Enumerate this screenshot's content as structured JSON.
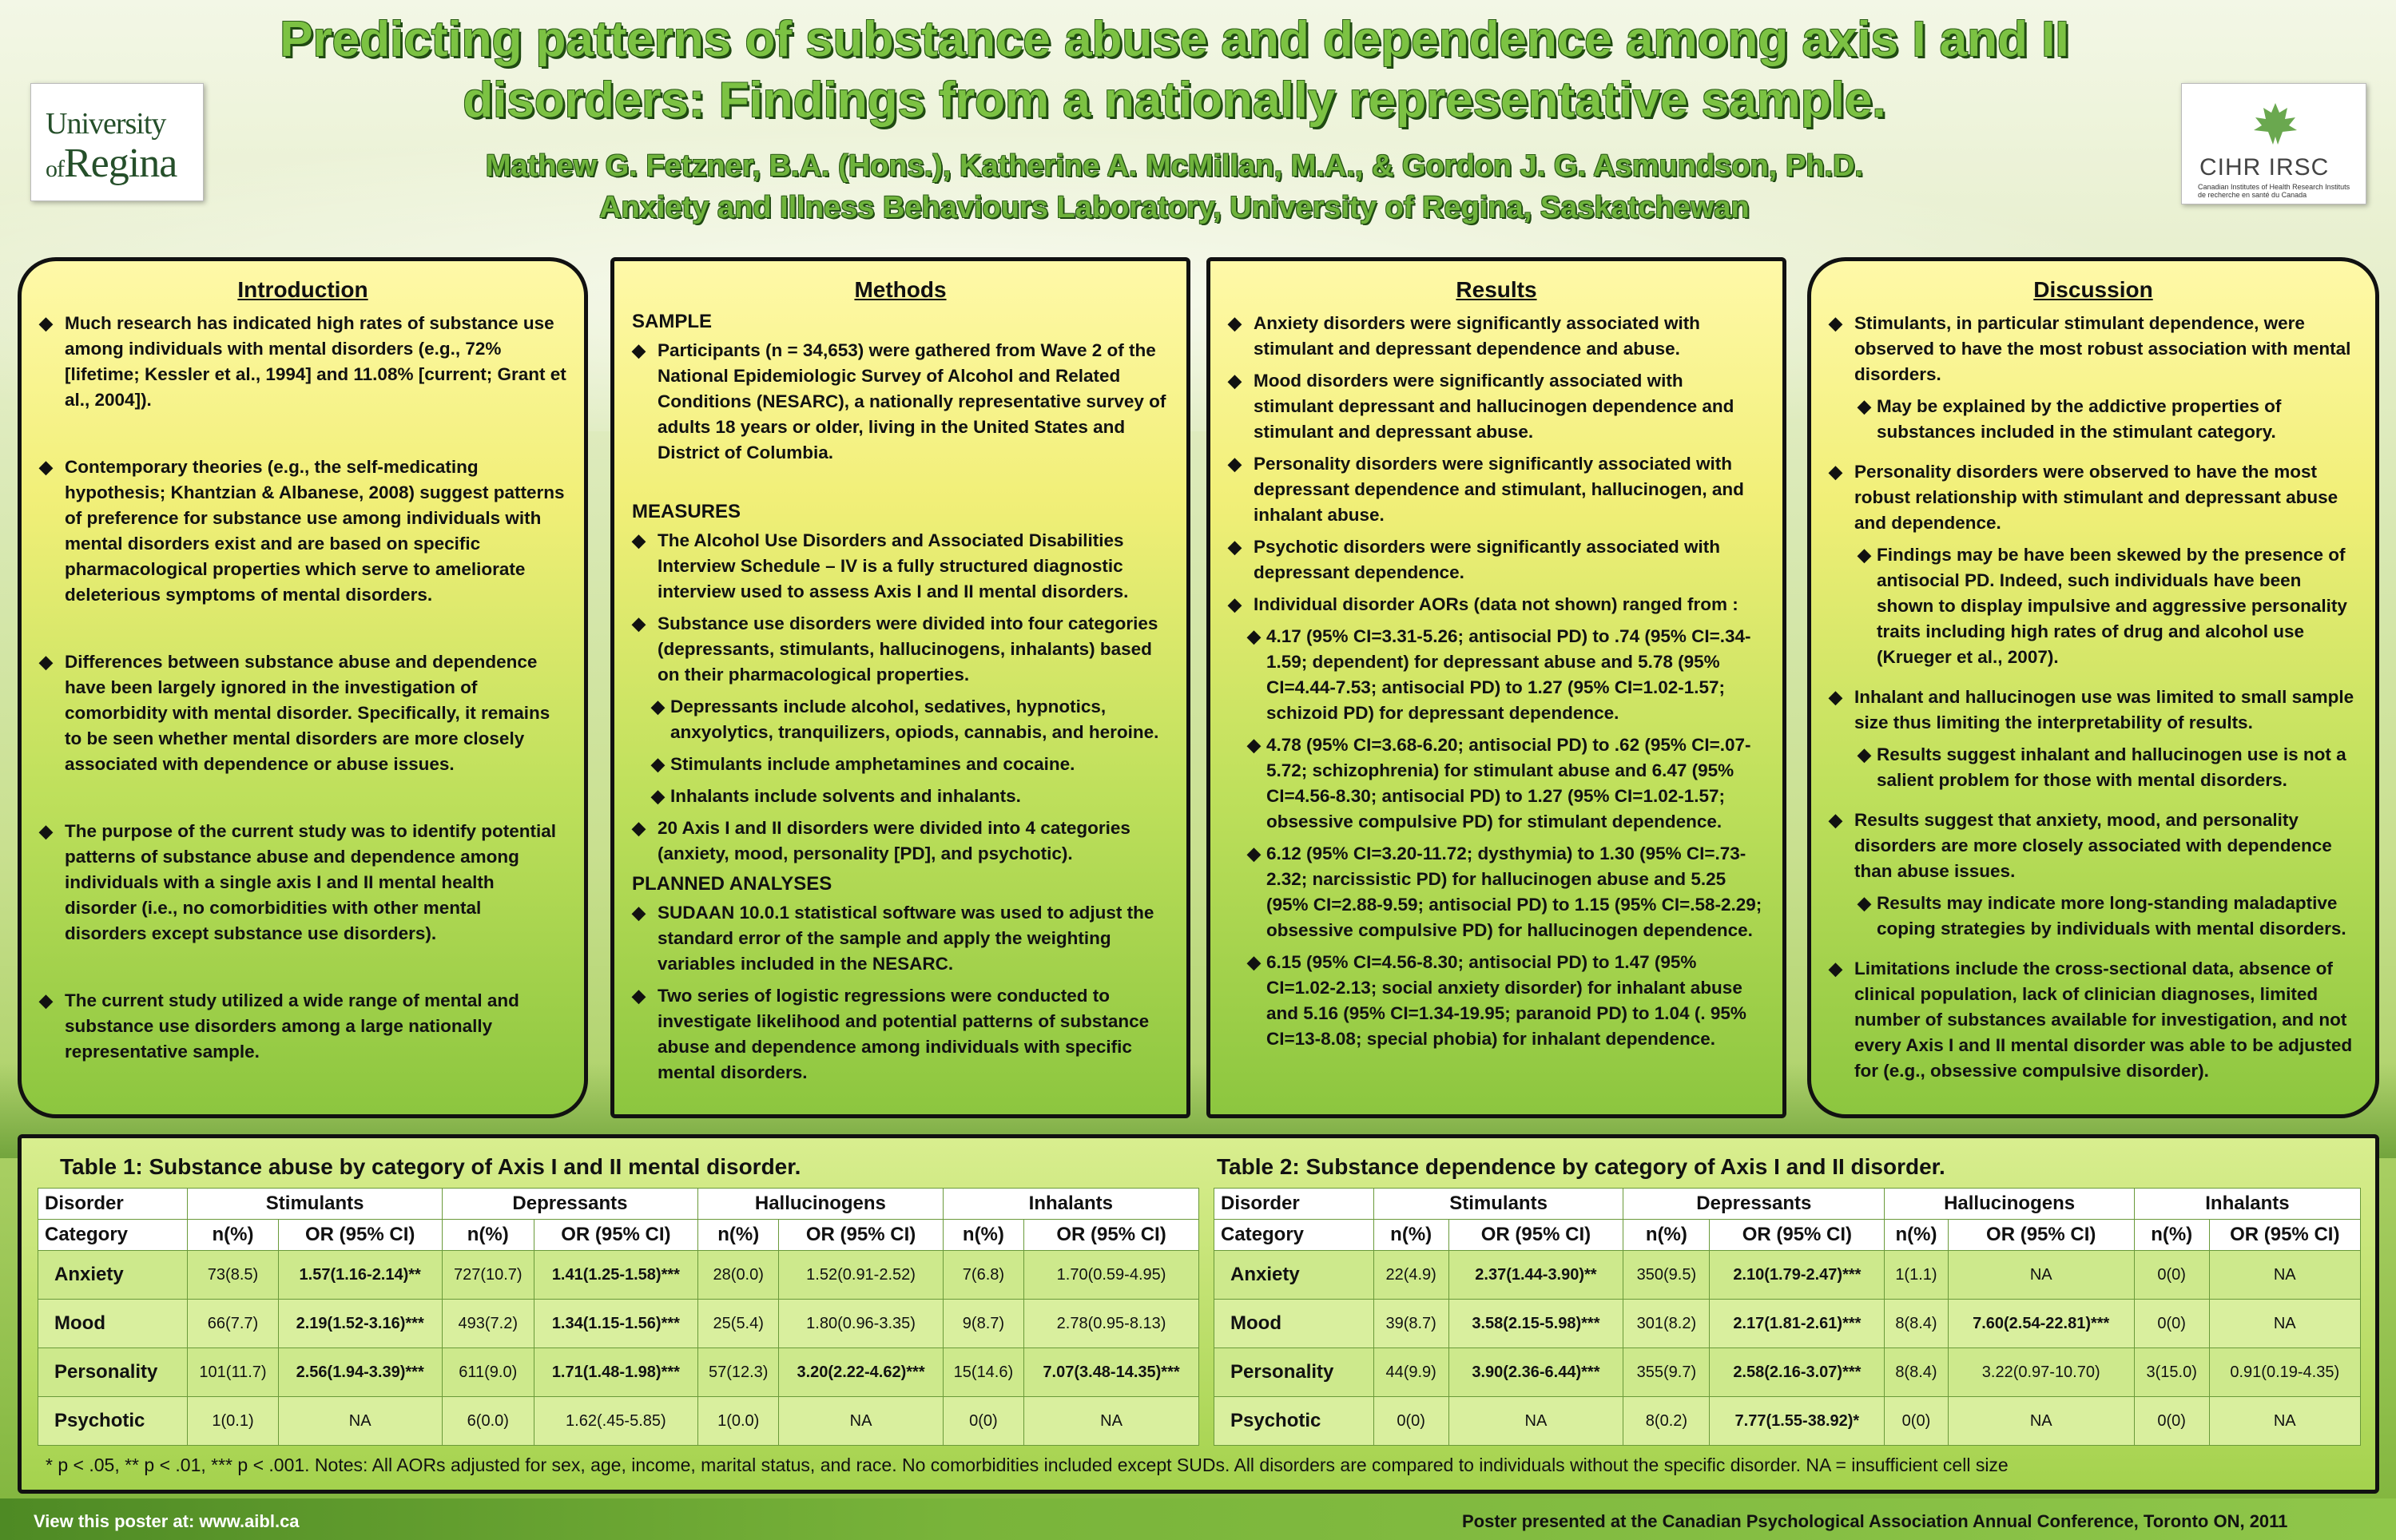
{
  "title": "Predicting patterns of substance abuse and dependence among axis I and II disorders: Findings from a nationally representative sample.",
  "authors": "Mathew G. Fetzner, B.A. (Hons.), Katherine A. McMillan, M.A., & Gordon J. G. Asmundson, Ph.D.",
  "affiliation": "Anxiety and  Illness Behaviours Laboratory, University of Regina, Saskatchewan",
  "logos": {
    "left_line1": "University",
    "left_line2_prefix": "of",
    "left_line2": "Regina",
    "right_text": "CIHR IRSC",
    "right_small": "Canadian Institutes of Health Research  Instituts de recherche en santé du Canada"
  },
  "introduction": {
    "heading": "Introduction",
    "bullets": [
      "Much research has indicated high rates of substance use among individuals with mental disorders (e.g., 72% [lifetime; Kessler et al., 1994] and 11.08% [current; Grant et al., 2004]).",
      "Contemporary theories  (e.g., the self-medicating hypothesis; Khantzian & Albanese, 2008) suggest patterns of preference for substance use among individuals with mental disorders exist and are based on specific pharmacological properties  which serve to ameliorate deleterious symptoms of mental disorders.",
      "Differences between substance abuse and dependence have been largely ignored in the investigation of comorbidity with mental disorder. Specifically, it remains to be seen whether mental disorders are more closely associated with dependence or abuse issues.",
      "The purpose of the current study was to identify potential patterns of substance abuse and dependence among individuals with a single axis I and II mental health disorder (i.e., no comorbidities with other mental disorders except substance use disorders).",
      "The current study utilized a  wide range of mental and substance use disorders among a large nationally representative sample."
    ]
  },
  "methods": {
    "heading": "Methods",
    "sample_label": "SAMPLE",
    "sample": [
      "Participants (n = 34,653) were gathered from Wave 2 of the National Epidemiologic Survey of Alcohol and Related Conditions (NESARC), a nationally representative survey of adults 18 years or older, living in the United States and District of Columbia."
    ],
    "measures_label": "MEASURES",
    "measures": [
      "The Alcohol Use Disorders and Associated Disabilities Interview Schedule – IV is a fully structured diagnostic interview used to assess Axis I and II mental disorders.",
      "Substance use disorders were divided into four categories (depressants, stimulants, hallucinogens, inhalants) based on their pharmacological properties."
    ],
    "measures_sub": [
      "Depressants include alcohol, sedatives, hypnotics, anxyolytics, tranquilizers, opiods, cannabis, and heroine.",
      "Stimulants include amphetamines and cocaine.",
      "Inhalants include solvents and inhalants."
    ],
    "measures_last": "20 Axis I and II disorders were divided into 4 categories (anxiety, mood, personality [PD], and psychotic).",
    "analyses_label": "PLANNED ANALYSES",
    "analyses": [
      "SUDAAN 10.0.1 statistical software was used to adjust the standard error of the sample and apply the weighting variables included in the NESARC.",
      "Two series of logistic regressions were conducted to investigate likelihood and potential patterns of substance abuse and dependence among individuals with specific mental disorders."
    ]
  },
  "results": {
    "heading": "Results",
    "bullets": [
      "Anxiety disorders were significantly associated with stimulant and depressant dependence and abuse.",
      "Mood disorders were significantly associated with stimulant depressant and hallucinogen dependence and stimulant and depressant abuse.",
      "Personality disorders were significantly associated with depressant dependence and stimulant, hallucinogen, and inhalant abuse.",
      "Psychotic disorders were significantly associated with depressant dependence.",
      "Individual disorder AORs (data not shown) ranged from :"
    ],
    "sub": [
      "4.17 (95% CI=3.31-5.26; antisocial PD) to .74 (95% CI=.34-1.59; dependent) for depressant abuse and 5.78 (95% CI=4.44-7.53; antisocial PD) to 1.27 (95% CI=1.02-1.57; schizoid PD) for depressant dependence.",
      "4.78 (95% CI=3.68-6.20; antisocial PD) to .62 (95% CI=.07-5.72; schizophrenia) for stimulant abuse and 6.47 (95% CI=4.56-8.30; antisocial PD) to 1.27 (95% CI=1.02-1.57; obsessive compulsive PD) for stimulant dependence.",
      "6.12 (95% CI=3.20-11.72; dysthymia) to 1.30 (95% CI=.73-2.32; narcissistic PD) for hallucinogen abuse and 5.25 (95% CI=2.88-9.59; antisocial PD) to 1.15 (95% CI=.58-2.29; obsessive compulsive PD) for hallucinogen dependence.",
      "6.15 (95% CI=4.56-8.30; antisocial PD) to 1.47 (95% CI=1.02-2.13; social anxiety disorder) for inhalant abuse and 5.16 (95% CI=1.34-19.95; paranoid PD) to 1.04 (. 95% CI=13-8.08; special phobia) for inhalant dependence."
    ]
  },
  "discussion": {
    "heading": "Discussion",
    "items": [
      {
        "t": "Stimulants, in particular stimulant dependence, were observed to have the most robust association with mental disorders.",
        "lvl": 0
      },
      {
        "t": "May be explained by the addictive properties of substances included in the stimulant category.",
        "lvl": 1
      },
      {
        "t": "Personality disorders were observed to have the most robust relationship with stimulant and depressant abuse and dependence.",
        "lvl": 0
      },
      {
        "t": "Findings may be have been skewed by the presence of antisocial PD. Indeed, such individuals have been shown to display impulsive and aggressive personality traits including high rates of drug and alcohol use (Krueger et al., 2007).",
        "lvl": 1
      },
      {
        "t": "Inhalant and hallucinogen use was limited to small sample size thus limiting the interpretability of results.",
        "lvl": 0
      },
      {
        "t": "Results suggest inhalant and hallucinogen use is not a salient problem for those with mental disorders.",
        "lvl": 2
      },
      {
        "t": "Results suggest that anxiety, mood, and personality disorders are more closely associated with dependence than abuse issues.",
        "lvl": 0
      },
      {
        "t": "Results may indicate more long-standing maladaptive coping strategies by individuals with mental disorders.",
        "lvl": 2
      },
      {
        "t": "Limitations include the cross-sectional data, absence of clinical population, lack of clinician diagnoses, limited number of substances available for investigation, and not every Axis I and II mental disorder was able to be adjusted for (e.g., obsessive compulsive disorder).",
        "lvl": 0
      }
    ]
  },
  "table1": {
    "caption": "Table 1: Substance abuse by category of Axis I and II mental disorder.",
    "head1": [
      "Disorder",
      "Stimulants",
      "Depressants",
      "Hallucinogens",
      "Inhalants"
    ],
    "head2": [
      "Category",
      "n(%)",
      "OR (95% CI)",
      "n(%)",
      "OR (95% CI)",
      "n(%)",
      "OR (95% CI)",
      "n(%)",
      "OR (95% CI)"
    ],
    "rows": [
      [
        "Anxiety",
        "73(8.5)",
        "1.57(1.16-2.14)**",
        "727(10.7)",
        "1.41(1.25-1.58)***",
        "28(0.0)",
        "1.52(0.91-2.52)",
        "7(6.8)",
        "1.70(0.59-4.95)"
      ],
      [
        "Mood",
        "66(7.7)",
        "2.19(1.52-3.16)***",
        "493(7.2)",
        "1.34(1.15-1.56)***",
        "25(5.4)",
        "1.80(0.96-3.35)",
        "9(8.7)",
        "2.78(0.95-8.13)"
      ],
      [
        "Personality",
        "101(11.7)",
        "2.56(1.94-3.39)***",
        "611(9.0)",
        "1.71(1.48-1.98)***",
        "57(12.3)",
        "3.20(2.22-4.62)***",
        "15(14.6)",
        "7.07(3.48-14.35)***"
      ],
      [
        "Psychotic",
        "1(0.1)",
        "NA",
        "6(0.0)",
        "1.62(.45-5.85)",
        "1(0.0)",
        "NA",
        "0(0)",
        "NA"
      ]
    ]
  },
  "table2": {
    "caption": "Table 2: Substance dependence by category of Axis I and II disorder.",
    "head1": [
      "Disorder",
      "Stimulants",
      "Depressants",
      "Hallucinogens",
      "Inhalants"
    ],
    "head2": [
      "Category",
      "n(%)",
      "OR (95% CI)",
      "n(%)",
      "OR (95% CI)",
      "n(%)",
      "OR (95% CI)",
      "n(%)",
      "OR (95% CI)"
    ],
    "rows": [
      [
        "Anxiety",
        "22(4.9)",
        "2.37(1.44-3.90)**",
        "350(9.5)",
        "2.10(1.79-2.47)***",
        "1(1.1)",
        "NA",
        "0(0)",
        "NA"
      ],
      [
        "Mood",
        "39(8.7)",
        "3.58(2.15-5.98)***",
        "301(8.2)",
        "2.17(1.81-2.61)***",
        "8(8.4)",
        "7.60(2.54-22.81)***",
        "0(0)",
        "NA"
      ],
      [
        "Personality",
        "44(9.9)",
        "3.90(2.36-6.44)***",
        "355(9.7)",
        "2.58(2.16-3.07)***",
        "8(8.4)",
        "3.22(0.97-10.70)",
        "3(15.0)",
        "0.91(0.19-4.35)"
      ],
      [
        "Psychotic",
        "0(0)",
        "NA",
        "8(0.2)",
        "7.77(1.55-38.92)*",
        "0(0)",
        "NA",
        "0(0)",
        "NA"
      ]
    ]
  },
  "note": "* p < .05, ** p < .01, *** p < .001. Notes: All AORs adjusted for sex, age, income, marital status, and race. No comorbidities included except SUDs. All disorders are compared to individuals without the specific disorder. NA = insufficient cell size",
  "footer_left": "View this poster at: www.aibl.ca",
  "footer_right": "Poster presented at the Canadian Psychological Association Annual Conference, Toronto ON, 2011",
  "colors": {
    "title_green": "#7cc243",
    "panel_top": "#fff9a8",
    "panel_bottom": "#8cc63f"
  }
}
